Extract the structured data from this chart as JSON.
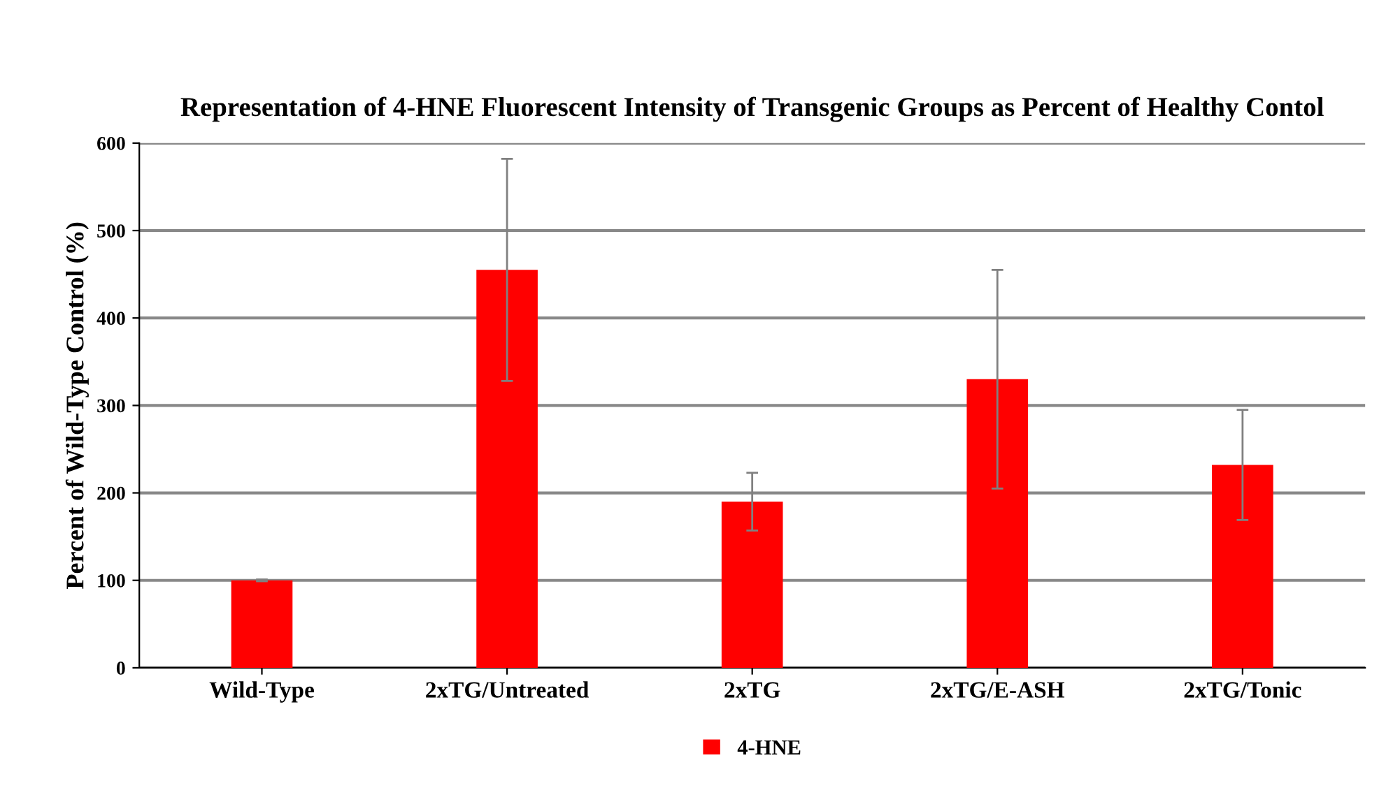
{
  "chart_data": {
    "type": "bar",
    "title": "Representation of 4-HNE Fluorescent Intensity of Transgenic Groups as Percent of Healthy Contol",
    "ylabel": "Percent of Wild-Type Control (%)",
    "categories": [
      "Wild-Type",
      "2xTG/Untreated",
      "2xTG",
      "2xTG/E-ASH",
      "2xTG/Tonic"
    ],
    "series": [
      {
        "name": "4-HNE",
        "color": "#ff0000",
        "values": [
          100,
          455,
          190,
          330,
          232
        ],
        "errors": [
          1,
          127,
          33,
          125,
          63
        ]
      }
    ],
    "ylim": [
      0,
      600
    ],
    "yticks": [
      0,
      100,
      200,
      300,
      400,
      500,
      600
    ],
    "grid": "y",
    "legend": "bottom"
  }
}
